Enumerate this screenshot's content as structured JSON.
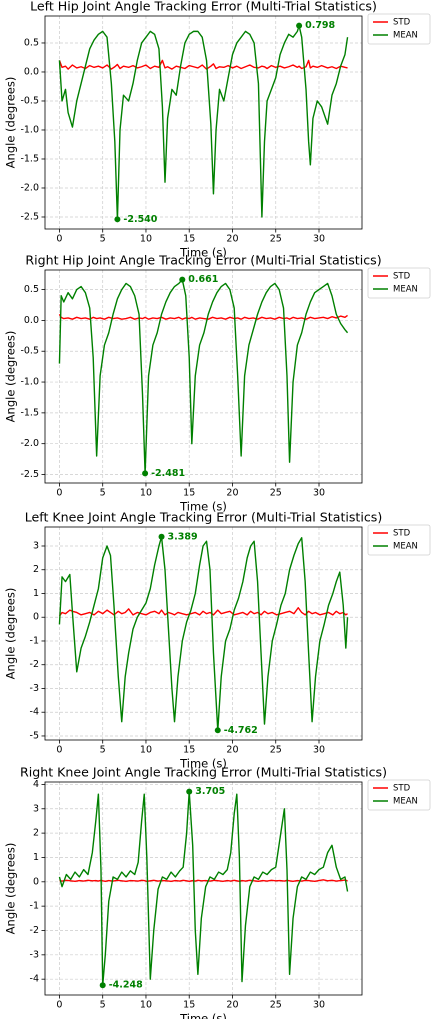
{
  "chart_data": [
    {
      "type": "line",
      "title": "Left Hip Joint Angle Tracking Error (Multi-Trial Statistics)",
      "x_label": "Time (s)",
      "y_label": "Angle (degrees)",
      "grid": true,
      "legend": "outside upper right",
      "x": [
        0,
        0.3,
        0.7,
        1,
        1.5,
        2,
        2.5,
        3,
        3.5,
        4,
        4.5,
        5,
        5.5,
        6,
        6.4,
        6.7,
        7,
        7.4,
        8,
        8.5,
        9,
        9.5,
        10,
        10.5,
        11,
        11.5,
        11.9,
        12.2,
        12.5,
        13,
        13.5,
        14,
        14.5,
        15,
        15.5,
        16,
        16.5,
        17,
        17.5,
        17.8,
        18.1,
        18.5,
        19,
        19.5,
        20,
        20.5,
        21,
        21.5,
        22,
        22.5,
        23,
        23.4,
        23.7,
        24,
        24.5,
        25,
        25.5,
        26,
        26.5,
        27,
        27.5,
        27.7,
        28,
        28.5,
        28.8,
        29,
        29.3,
        29.8,
        30.3,
        31,
        31.5,
        32,
        32.5,
        33,
        33.3
      ],
      "series": [
        {
          "name": "STD",
          "color": "#ff0000",
          "values": [
            0.2,
            0.08,
            0.1,
            0.05,
            0.12,
            0.07,
            0.09,
            0.06,
            0.11,
            0.08,
            0.1,
            0.07,
            0.12,
            0.05,
            0.09,
            0.13,
            0.06,
            0.1,
            0.08,
            0.11,
            0.07,
            0.09,
            0.12,
            0.06,
            0.1,
            0.08,
            0.2,
            0.07,
            0.09,
            0.05,
            0.1,
            0.08,
            0.06,
            0.11,
            0.09,
            0.07,
            0.12,
            0.05,
            0.1,
            0.14,
            0.06,
            0.09,
            0.08,
            0.11,
            0.07,
            0.1,
            0.06,
            0.09,
            0.12,
            0.08,
            0.07,
            0.1,
            0.09,
            0.06,
            0.11,
            0.08,
            0.1,
            0.07,
            0.09,
            0.12,
            0.08,
            0.1,
            0.06,
            0.09,
            0.2,
            0.07,
            0.1,
            0.08,
            0.11,
            0.07,
            0.09,
            0.06,
            0.1,
            0.08,
            0.07
          ]
        },
        {
          "name": "MEAN",
          "color": "#008000",
          "values": [
            0.2,
            -0.5,
            -0.3,
            -0.7,
            -0.95,
            -0.5,
            -0.2,
            0.1,
            0.4,
            0.55,
            0.65,
            0.7,
            0.6,
            -0.2,
            -1.2,
            -2.54,
            -1.0,
            -0.4,
            -0.5,
            -0.2,
            0.2,
            0.5,
            0.6,
            0.7,
            0.65,
            0.4,
            -0.6,
            -1.9,
            -0.8,
            -0.3,
            -0.4,
            0.1,
            0.5,
            0.65,
            0.7,
            0.7,
            0.6,
            0.2,
            -0.9,
            -2.1,
            -1.0,
            -0.3,
            -0.5,
            -0.1,
            0.3,
            0.5,
            0.6,
            0.7,
            0.65,
            0.5,
            -0.2,
            -2.5,
            -1.2,
            -0.5,
            -0.3,
            -0.1,
            0.3,
            0.5,
            0.65,
            0.6,
            0.7,
            0.798,
            0.6,
            -0.3,
            -1.2,
            -1.6,
            -0.8,
            -0.5,
            -0.6,
            -0.9,
            -0.4,
            -0.2,
            0.1,
            0.3,
            0.6
          ]
        }
      ],
      "annotations": [
        {
          "x": 27.7,
          "y": 0.798,
          "label": "0.798"
        },
        {
          "x": 6.7,
          "y": -2.54,
          "label": "-2.540"
        }
      ],
      "xlim": [
        -1.67,
        34.97
      ],
      "ylim": [
        -2.707,
        0.965
      ],
      "xticks": [
        0,
        5,
        10,
        15,
        20,
        25,
        30
      ],
      "yticks": [
        0.5,
        {
          "value": 0,
          "label": "0.0"
        },
        -0.5,
        {
          "value": -1,
          "label": "-1.0"
        },
        -1.5,
        {
          "value": -2,
          "label": "-2.0"
        },
        -2.5
      ]
    },
    {
      "type": "line",
      "title": "Right Hip Joint Angle Tracking Error (Multi-Trial Statistics)",
      "x_label": "Time (s)",
      "y_label": "Angle (degrees)",
      "grid": true,
      "legend": "outside upper right",
      "x": [
        0,
        0.2,
        0.5,
        1,
        1.5,
        2,
        2.5,
        3,
        3.5,
        3.9,
        4.3,
        4.7,
        5.2,
        5.7,
        6.2,
        6.7,
        7.2,
        7.7,
        8.2,
        8.7,
        9.2,
        9.6,
        9.9,
        10.3,
        10.8,
        11.3,
        11.8,
        12.3,
        12.8,
        13.3,
        13.8,
        14.2,
        14.6,
        15,
        15.3,
        15.7,
        16.2,
        16.7,
        17.2,
        17.7,
        18.2,
        18.7,
        19.2,
        19.7,
        20.2,
        20.6,
        21,
        21.4,
        21.9,
        22.4,
        22.9,
        23.4,
        23.9,
        24.4,
        24.9,
        25.4,
        25.9,
        26.3,
        26.6,
        27,
        27.5,
        28,
        28.5,
        29,
        29.5,
        30,
        30.5,
        31,
        31.5,
        32,
        32.5,
        33,
        33.3
      ],
      "series": [
        {
          "name": "STD",
          "color": "#ff0000",
          "values": [
            0.1,
            0.05,
            0.03,
            0.04,
            0.02,
            0.05,
            0.03,
            0.04,
            0.02,
            0.05,
            0.03,
            0.04,
            0.02,
            0.05,
            0.03,
            0.04,
            0.02,
            0.03,
            0.05,
            0.02,
            0.04,
            0.03,
            0.05,
            0.02,
            0.04,
            0.03,
            0.05,
            0.02,
            0.04,
            0.03,
            0.05,
            0.02,
            0.04,
            0.03,
            0.05,
            0.02,
            0.04,
            0.03,
            0.02,
            0.05,
            0.03,
            0.04,
            0.02,
            0.05,
            0.03,
            0.04,
            0.02,
            0.05,
            0.03,
            0.04,
            0.02,
            0.05,
            0.03,
            0.04,
            0.02,
            0.05,
            0.03,
            0.04,
            0.02,
            0.05,
            0.03,
            0.04,
            0.02,
            0.05,
            0.03,
            0.04,
            0.05,
            0.03,
            0.06,
            0.04,
            0.07,
            0.05,
            0.08
          ]
        },
        {
          "name": "MEAN",
          "color": "#008000",
          "values": [
            -0.7,
            0.4,
            0.3,
            0.45,
            0.35,
            0.5,
            0.55,
            0.45,
            0.2,
            -0.6,
            -2.2,
            -0.9,
            -0.4,
            -0.2,
            0.1,
            0.35,
            0.5,
            0.6,
            0.55,
            0.4,
            0.1,
            -1.2,
            -2.481,
            -0.9,
            -0.4,
            -0.2,
            0.1,
            0.3,
            0.45,
            0.55,
            0.6,
            0.661,
            0.4,
            -0.6,
            -2.0,
            -0.9,
            -0.4,
            -0.2,
            0.1,
            0.3,
            0.45,
            0.55,
            0.6,
            0.5,
            0.2,
            -0.9,
            -2.2,
            -0.9,
            -0.4,
            -0.15,
            0.1,
            0.3,
            0.45,
            0.55,
            0.6,
            0.5,
            0.2,
            -0.9,
            -2.3,
            -1.0,
            -0.4,
            -0.2,
            0.1,
            0.3,
            0.45,
            0.5,
            0.55,
            0.6,
            0.4,
            0.1,
            -0.05,
            -0.15,
            -0.2
          ]
        }
      ],
      "annotations": [
        {
          "x": 14.2,
          "y": 0.661,
          "label": "0.661"
        },
        {
          "x": 9.9,
          "y": -2.481,
          "label": "-2.481"
        }
      ],
      "xlim": [
        -1.67,
        34.97
      ],
      "ylim": [
        -2.638,
        0.818
      ],
      "xticks": [
        0,
        5,
        10,
        15,
        20,
        25,
        30
      ],
      "yticks": [
        0.5,
        {
          "value": 0,
          "label": "0.0"
        },
        -0.5,
        {
          "value": -1,
          "label": "-1.0"
        },
        -1.5,
        {
          "value": -2,
          "label": "-2.0"
        },
        -2.5
      ]
    },
    {
      "type": "line",
      "title": "Left Knee Joint Angle Tracking Error (Multi-Trial Statistics)",
      "x_label": "Time (s)",
      "y_label": "Angle (degrees)",
      "grid": true,
      "legend": "outside upper right",
      "x": [
        0,
        0.3,
        0.7,
        1.2,
        1.5,
        2,
        2.5,
        3,
        3.5,
        4,
        4.5,
        5,
        5.5,
        5.9,
        6.3,
        6.8,
        7.2,
        7.6,
        8,
        8.5,
        9,
        9.5,
        10,
        10.5,
        11,
        11.5,
        11.8,
        12.2,
        12.6,
        13,
        13.3,
        13.7,
        14.2,
        14.7,
        15.2,
        15.7,
        16.2,
        16.6,
        17,
        17.4,
        17.8,
        18.3,
        18.7,
        19.2,
        19.7,
        20.2,
        20.7,
        21.2,
        21.7,
        22.1,
        22.5,
        22.9,
        23.3,
        23.7,
        24.1,
        24.6,
        25.1,
        25.6,
        26.1,
        26.6,
        27.1,
        27.6,
        28,
        28.4,
        28.8,
        29.2,
        29.6,
        30.1,
        30.6,
        31.1,
        31.6,
        32,
        32.4,
        32.8,
        33.1,
        33.3
      ],
      "series": [
        {
          "name": "STD",
          "color": "#ff0000",
          "values": [
            0.05,
            0.2,
            0.15,
            0.3,
            0.25,
            0.2,
            0.1,
            0.15,
            0.2,
            0.1,
            0.25,
            0.15,
            0.3,
            0.2,
            0.1,
            0.25,
            0.15,
            0.2,
            0.35,
            0.1,
            0.2,
            0.15,
            0.1,
            0.2,
            0.25,
            0.15,
            0.3,
            0.1,
            0.2,
            0.15,
            0.1,
            0.2,
            0.15,
            0.1,
            0.15,
            0.2,
            0.1,
            0.25,
            0.15,
            0.2,
            0.1,
            0.3,
            0.15,
            0.2,
            0.25,
            0.1,
            0.15,
            0.2,
            0.1,
            0.25,
            0.15,
            0.2,
            0.1,
            0.25,
            0.15,
            0.2,
            0.1,
            0.15,
            0.2,
            0.25,
            0.15,
            0.4,
            0.2,
            0.1,
            0.25,
            0.15,
            0.2,
            0.1,
            0.15,
            0.2,
            0.1,
            0.25,
            0.15,
            0.2,
            0.1,
            0.15
          ]
        },
        {
          "name": "MEAN",
          "color": "#008000",
          "values": [
            -0.3,
            1.7,
            1.5,
            1.8,
            0.2,
            -2.3,
            -1.3,
            -0.8,
            -0.2,
            0.5,
            1.2,
            2.5,
            3.0,
            2.6,
            0.5,
            -2.5,
            -4.4,
            -2.5,
            -1.5,
            -0.5,
            0,
            0.3,
            0.6,
            1.2,
            2.2,
            3.0,
            3.389,
            2.0,
            -0.5,
            -3.0,
            -4.4,
            -2.5,
            -1.0,
            -0.2,
            0.3,
            1.0,
            2.2,
            3.0,
            3.2,
            2.0,
            -1.5,
            -4.762,
            -2.5,
            -1.0,
            -0.5,
            0.3,
            0.8,
            1.5,
            2.5,
            3.0,
            3.2,
            1.5,
            -1.5,
            -4.5,
            -2.5,
            -1.0,
            -0.3,
            0.5,
            1.0,
            2.0,
            2.6,
            3.1,
            3.35,
            1.5,
            -1.5,
            -4.4,
            -2.5,
            -1.0,
            -0.3,
            0.5,
            1.0,
            1.5,
            1.9,
            0.5,
            -1.3,
            0
          ]
        }
      ],
      "annotations": [
        {
          "x": 11.8,
          "y": 3.389,
          "label": "3.389"
        },
        {
          "x": 18.3,
          "y": -4.762,
          "label": "-4.762"
        }
      ],
      "xlim": [
        -1.67,
        34.97
      ],
      "ylim": [
        -5.17,
        3.8
      ],
      "xticks": [
        0,
        5,
        10,
        15,
        20,
        25,
        30
      ],
      "yticks": [
        3,
        2,
        1,
        0,
        -1,
        -2,
        -3,
        -4,
        -5
      ]
    },
    {
      "type": "line",
      "title": "Right Knee Joint Angle Tracking Error (Multi-Trial Statistics)",
      "x_label": "Time (s)",
      "y_label": "Angle (degrees)",
      "grid": true,
      "legend": "outside upper right",
      "x": [
        0,
        0.3,
        0.8,
        1.3,
        1.8,
        2.3,
        2.8,
        3.3,
        3.8,
        4.2,
        4.5,
        4.8,
        5,
        5.3,
        5.7,
        6.2,
        6.7,
        7.2,
        7.7,
        8.2,
        8.7,
        9.1,
        9.5,
        9.8,
        10.1,
        10.5,
        10.9,
        11.4,
        11.9,
        12.4,
        12.9,
        13.4,
        13.9,
        14.3,
        14.7,
        15,
        15.4,
        15.7,
        16,
        16.4,
        16.9,
        17.4,
        17.9,
        18.4,
        18.9,
        19.4,
        19.8,
        20.2,
        20.5,
        20.8,
        21.1,
        21.5,
        22,
        22.5,
        23,
        23.5,
        24,
        24.5,
        25,
        25.5,
        26,
        26.3,
        26.6,
        27,
        27.5,
        28,
        28.5,
        29,
        29.5,
        30,
        30.5,
        31,
        31.5,
        32,
        32.5,
        33,
        33.3
      ],
      "series": [
        {
          "name": "STD",
          "color": "#ff0000",
          "values": [
            0.05,
            0.03,
            0.06,
            0.04,
            0.02,
            0.05,
            0.03,
            0.06,
            0.04,
            0.05,
            0.03,
            0.06,
            0.04,
            0.02,
            0.05,
            0.03,
            0.06,
            0.04,
            0.02,
            0.05,
            0.04,
            0.03,
            0.06,
            0.05,
            0.02,
            0.04,
            0.06,
            0.03,
            0.05,
            0.04,
            0.02,
            0.05,
            0.03,
            0.06,
            0.04,
            0.02,
            0.05,
            0.03,
            0.06,
            0.04,
            0.05,
            0.03,
            0.06,
            0.04,
            0.02,
            0.05,
            0.03,
            0.06,
            0.04,
            0.02,
            0.05,
            0.03,
            0.06,
            0.04,
            0.02,
            0.05,
            0.03,
            0.06,
            0.04,
            0.05,
            0.03,
            0.06,
            0.04,
            0.02,
            0.05,
            0.03,
            0.06,
            0.04,
            0.02,
            0.05,
            0.08,
            0.04,
            0.06,
            0.03,
            0.05,
            0.07,
            0.04
          ]
        },
        {
          "name": "MEAN",
          "color": "#008000",
          "values": [
            0.2,
            -0.2,
            0.3,
            0.1,
            0.4,
            0.2,
            0.5,
            0.3,
            1.2,
            2.5,
            3.6,
            0.5,
            -4.248,
            -3.0,
            -0.8,
            0.2,
            0.1,
            0.4,
            0.2,
            0.45,
            0.3,
            0.8,
            2.5,
            3.6,
            1.0,
            -4.0,
            -2.0,
            -0.3,
            0.2,
            0.1,
            0.4,
            0.2,
            0.45,
            0.6,
            2.0,
            3.705,
            1.5,
            -2.0,
            -3.8,
            -1.5,
            -0.2,
            0.2,
            0.1,
            0.4,
            0.3,
            0.5,
            1.2,
            2.8,
            3.6,
            1.0,
            -4.1,
            -1.8,
            -0.2,
            0.2,
            0.1,
            0.4,
            0.3,
            0.5,
            0.6,
            1.8,
            3.0,
            0.5,
            -3.8,
            -1.5,
            -0.2,
            0.2,
            0.1,
            0.4,
            0.3,
            0.5,
            0.6,
            1.2,
            1.5,
            0.6,
            0.1,
            0.2,
            -0.4
          ]
        }
      ],
      "annotations": [
        {
          "x": 15,
          "y": 3.705,
          "label": "3.705"
        },
        {
          "x": 5,
          "y": -4.248,
          "label": "-4.248"
        }
      ],
      "xlim": [
        -1.67,
        34.97
      ],
      "ylim": [
        -4.65,
        4.1
      ],
      "xticks": [
        0,
        5,
        10,
        15,
        20,
        25,
        30
      ],
      "yticks": [
        4,
        3,
        2,
        1,
        0,
        -1,
        -2,
        -3,
        -4
      ]
    }
  ]
}
